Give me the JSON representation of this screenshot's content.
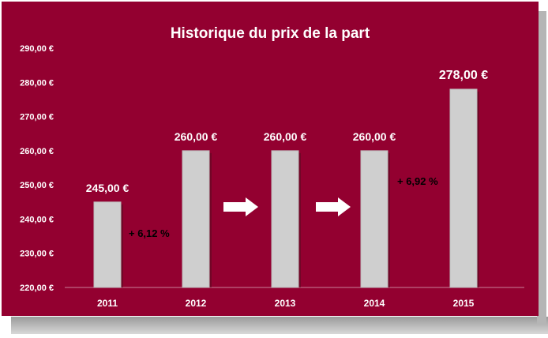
{
  "chart_data": {
    "type": "bar",
    "title": "Historique du prix de la part",
    "categories": [
      "2011",
      "2012",
      "2013",
      "2014",
      "2015"
    ],
    "values": [
      245,
      260,
      260,
      260,
      278
    ],
    "value_labels": [
      "245,00 €",
      "260,00 €",
      "260,00 €",
      "260,00 €",
      "278,00 €"
    ],
    "ylim": [
      220,
      290
    ],
    "ytick_labels": [
      "220,00 €",
      "230,00 €",
      "240,00 €",
      "250,00 €",
      "260,00 €",
      "270,00 €",
      "280,00 €",
      "290,00 €"
    ],
    "annotations": [
      "+ 6,12 %",
      "+ 6,92 %"
    ],
    "grid": false,
    "colors": {
      "background": "#930030",
      "bar": "#cfcfcf",
      "text": "#ffffff",
      "annotation_text": "#000000",
      "arrow": "#ffffff"
    }
  }
}
